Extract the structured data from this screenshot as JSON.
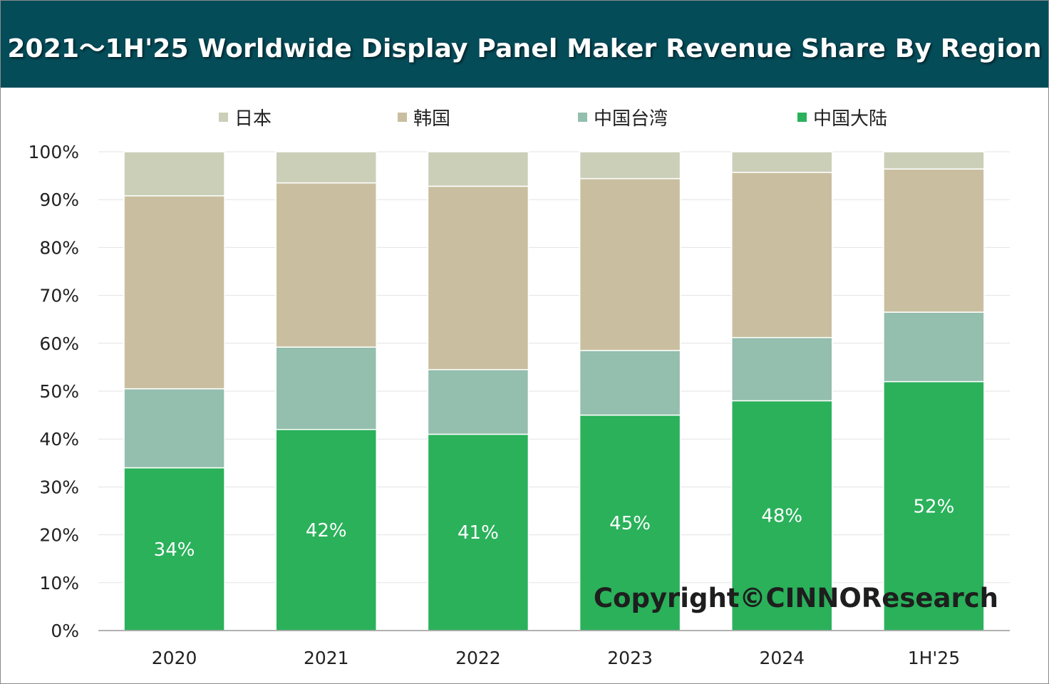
{
  "title": "2021～1H'25 Worldwide Display Panel Maker Revenue Share By Region",
  "watermark": "Copyright©CINNOResearch",
  "colors": {
    "header_bg": "#054c59",
    "japan": "#cbcfb8",
    "korea": "#c9bfa0",
    "taiwan": "#94bead",
    "mainland": "#2ab15a"
  },
  "chart_data": {
    "type": "bar",
    "stacked": true,
    "categories": [
      "2020",
      "2021",
      "2022",
      "2023",
      "2024",
      "1H'25"
    ],
    "series": [
      {
        "name": "中国大陆",
        "color": "#2ab15a",
        "values": [
          34,
          42,
          41,
          45,
          48,
          52
        ],
        "labels": [
          "34%",
          "42%",
          "41%",
          "45%",
          "48%",
          "52%"
        ]
      },
      {
        "name": "中国台湾",
        "color": "#94bead",
        "values": [
          16.5,
          17.2,
          13.5,
          13.5,
          13.2,
          14.5
        ]
      },
      {
        "name": "韩国",
        "color": "#c9bfa0",
        "values": [
          40.3,
          34.3,
          38.3,
          35.9,
          34.5,
          29.9
        ]
      },
      {
        "name": "日本",
        "color": "#cbcfb8",
        "values": [
          9.2,
          6.5,
          7.2,
          5.6,
          4.3,
          3.6
        ]
      }
    ],
    "legend": [
      "日本",
      "韩国",
      "中国台湾",
      "中国大陆"
    ],
    "legend_position": "top",
    "ylim": [
      0,
      100
    ],
    "yticks": [
      "0%",
      "10%",
      "20%",
      "30%",
      "40%",
      "50%",
      "60%",
      "70%",
      "80%",
      "90%",
      "100%"
    ],
    "grid": true,
    "xlabel": "",
    "ylabel": ""
  }
}
